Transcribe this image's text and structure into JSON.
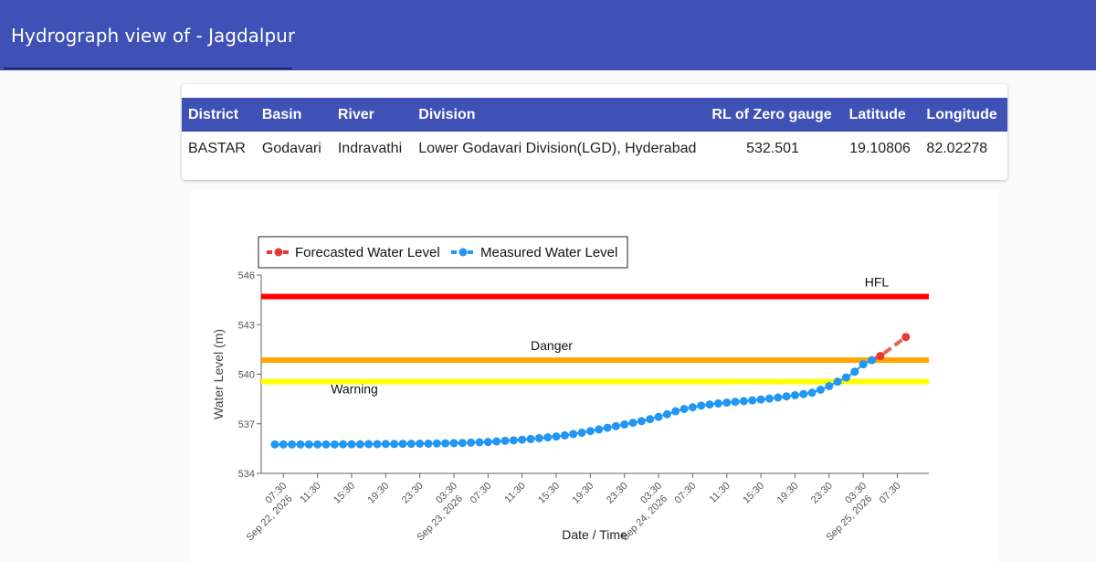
{
  "header": {
    "title": "Hydrograph view of - Jagdalpur"
  },
  "station_table": {
    "columns": [
      "District",
      "Basin",
      "River",
      "Division",
      "RL of Zero gauge",
      "Latitude",
      "Longitude"
    ],
    "row": [
      "BASTAR",
      "Godavari",
      "Indravathi",
      "Lower Godavari Division(LGD), Hyderabad",
      "532.501",
      "19.10806",
      "82.02278"
    ]
  },
  "colors": {
    "header_bg": "#3f51b5",
    "hfl": "#ff0000",
    "danger": "#ffa500",
    "warning": "#ffff00",
    "measured": "#2196f3",
    "forecast": "#e53935"
  },
  "chart_data": {
    "type": "line",
    "xlabel": "Date / Time",
    "ylabel": "Water Level (m)",
    "ylim": [
      534,
      546
    ],
    "yticks": [
      534,
      537,
      540,
      543,
      546
    ],
    "xticks": [
      {
        "t": 7.5,
        "time": "07:30",
        "date": "Sep 22, 2026"
      },
      {
        "t": 11.5,
        "time": "11:30",
        "date": ""
      },
      {
        "t": 15.5,
        "time": "15:30",
        "date": ""
      },
      {
        "t": 19.5,
        "time": "19:30",
        "date": ""
      },
      {
        "t": 23.5,
        "time": "23:30",
        "date": ""
      },
      {
        "t": 27.5,
        "time": "03:30",
        "date": "Sep 23, 2026"
      },
      {
        "t": 31.5,
        "time": "07:30",
        "date": ""
      },
      {
        "t": 35.5,
        "time": "11:30",
        "date": ""
      },
      {
        "t": 39.5,
        "time": "15:30",
        "date": ""
      },
      {
        "t": 43.5,
        "time": "19:30",
        "date": ""
      },
      {
        "t": 47.5,
        "time": "23:30",
        "date": ""
      },
      {
        "t": 51.5,
        "time": "03:30",
        "date": "Sep 24, 2026"
      },
      {
        "t": 55.5,
        "time": "07:30",
        "date": ""
      },
      {
        "t": 59.5,
        "time": "11:30",
        "date": ""
      },
      {
        "t": 63.5,
        "time": "15:30",
        "date": ""
      },
      {
        "t": 67.5,
        "time": "19:30",
        "date": ""
      },
      {
        "t": 71.5,
        "time": "23:30",
        "date": ""
      },
      {
        "t": 75.5,
        "time": "03:30",
        "date": "Sep 25, 2026"
      },
      {
        "t": 79.5,
        "time": "07:30",
        "date": ""
      }
    ],
    "reference_lines": [
      {
        "name": "HFL",
        "value": 544.7,
        "color": "#ff0000"
      },
      {
        "name": "Danger",
        "value": 540.85,
        "color": "#ffa500"
      },
      {
        "name": "Warning",
        "value": 539.55,
        "color": "#ffff00"
      }
    ],
    "series": [
      {
        "name": "Measured Water Level",
        "color": "#2196f3",
        "x": [
          6.5,
          7.5,
          8.5,
          9.5,
          10.5,
          11.5,
          12.5,
          13.5,
          14.5,
          15.5,
          16.5,
          17.5,
          18.5,
          19.5,
          20.5,
          21.5,
          22.5,
          23.5,
          24.5,
          25.5,
          26.5,
          27.5,
          28.5,
          29.5,
          30.5,
          31.5,
          32.5,
          33.5,
          34.5,
          35.5,
          36.5,
          37.5,
          38.5,
          39.5,
          40.5,
          41.5,
          42.5,
          43.5,
          44.5,
          45.5,
          46.5,
          47.5,
          48.5,
          49.5,
          50.5,
          51.5,
          52.5,
          53.5,
          54.5,
          55.5,
          56.5,
          57.5,
          58.5,
          59.5,
          60.5,
          61.5,
          62.5,
          63.5,
          64.5,
          65.5,
          66.5,
          67.5,
          68.5,
          69.5,
          70.5,
          71.5,
          72.5,
          73.5,
          74.5,
          75.5,
          76.5
        ],
        "y": [
          535.75,
          535.75,
          535.75,
          535.75,
          535.75,
          535.75,
          535.75,
          535.75,
          535.76,
          535.76,
          535.76,
          535.77,
          535.77,
          535.78,
          535.78,
          535.79,
          535.79,
          535.8,
          535.8,
          535.81,
          535.82,
          535.83,
          535.84,
          535.86,
          535.88,
          535.9,
          535.93,
          535.97,
          536.0,
          536.04,
          536.08,
          536.13,
          536.18,
          536.23,
          536.3,
          536.38,
          536.46,
          536.56,
          536.66,
          536.76,
          536.86,
          536.96,
          537.06,
          537.16,
          537.28,
          537.42,
          537.58,
          537.76,
          537.9,
          538.0,
          538.1,
          538.17,
          538.23,
          538.28,
          538.33,
          538.37,
          538.42,
          538.47,
          538.53,
          538.59,
          538.66,
          538.73,
          538.8,
          538.88,
          539.06,
          539.28,
          539.55,
          539.8,
          540.15,
          540.6,
          540.85
        ]
      },
      {
        "name": "Forecasted Water Level",
        "color": "#e53935",
        "x": [
          77.5,
          80.5
        ],
        "y": [
          541.1,
          542.25
        ]
      }
    ],
    "annotations": [
      "HFL",
      "Danger",
      "Warning"
    ],
    "legend": "top-left",
    "grid": false
  }
}
